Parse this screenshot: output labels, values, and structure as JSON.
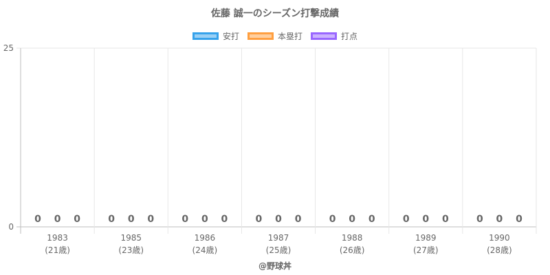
{
  "chart_data": {
    "type": "bar",
    "title": "佐藤 誠一のシーズン打撃成績",
    "categories": [
      "1983",
      "1985",
      "1986",
      "1987",
      "1988",
      "1989",
      "1990"
    ],
    "sublabels": [
      "(21歳)",
      "(23歳)",
      "(24歳)",
      "(25歳)",
      "(26歳)",
      "(27歳)",
      "(28歳)"
    ],
    "series": [
      {
        "name": "安打",
        "values": [
          0,
          0,
          0,
          0,
          0,
          0,
          0
        ],
        "fill": "#9ad0f5",
        "stroke": "#36a2eb"
      },
      {
        "name": "本塁打",
        "values": [
          0,
          0,
          0,
          0,
          0,
          0,
          0
        ],
        "fill": "#ffcf9f",
        "stroke": "#ff9f40"
      },
      {
        "name": "打点",
        "values": [
          0,
          0,
          0,
          0,
          0,
          0,
          0
        ],
        "fill": "#ccb2ff",
        "stroke": "#9966ff"
      }
    ],
    "ylim": [
      0,
      25
    ],
    "yticks": [
      0,
      25
    ],
    "grid": true,
    "legend_position": "top"
  },
  "watermark": "@野球丼"
}
